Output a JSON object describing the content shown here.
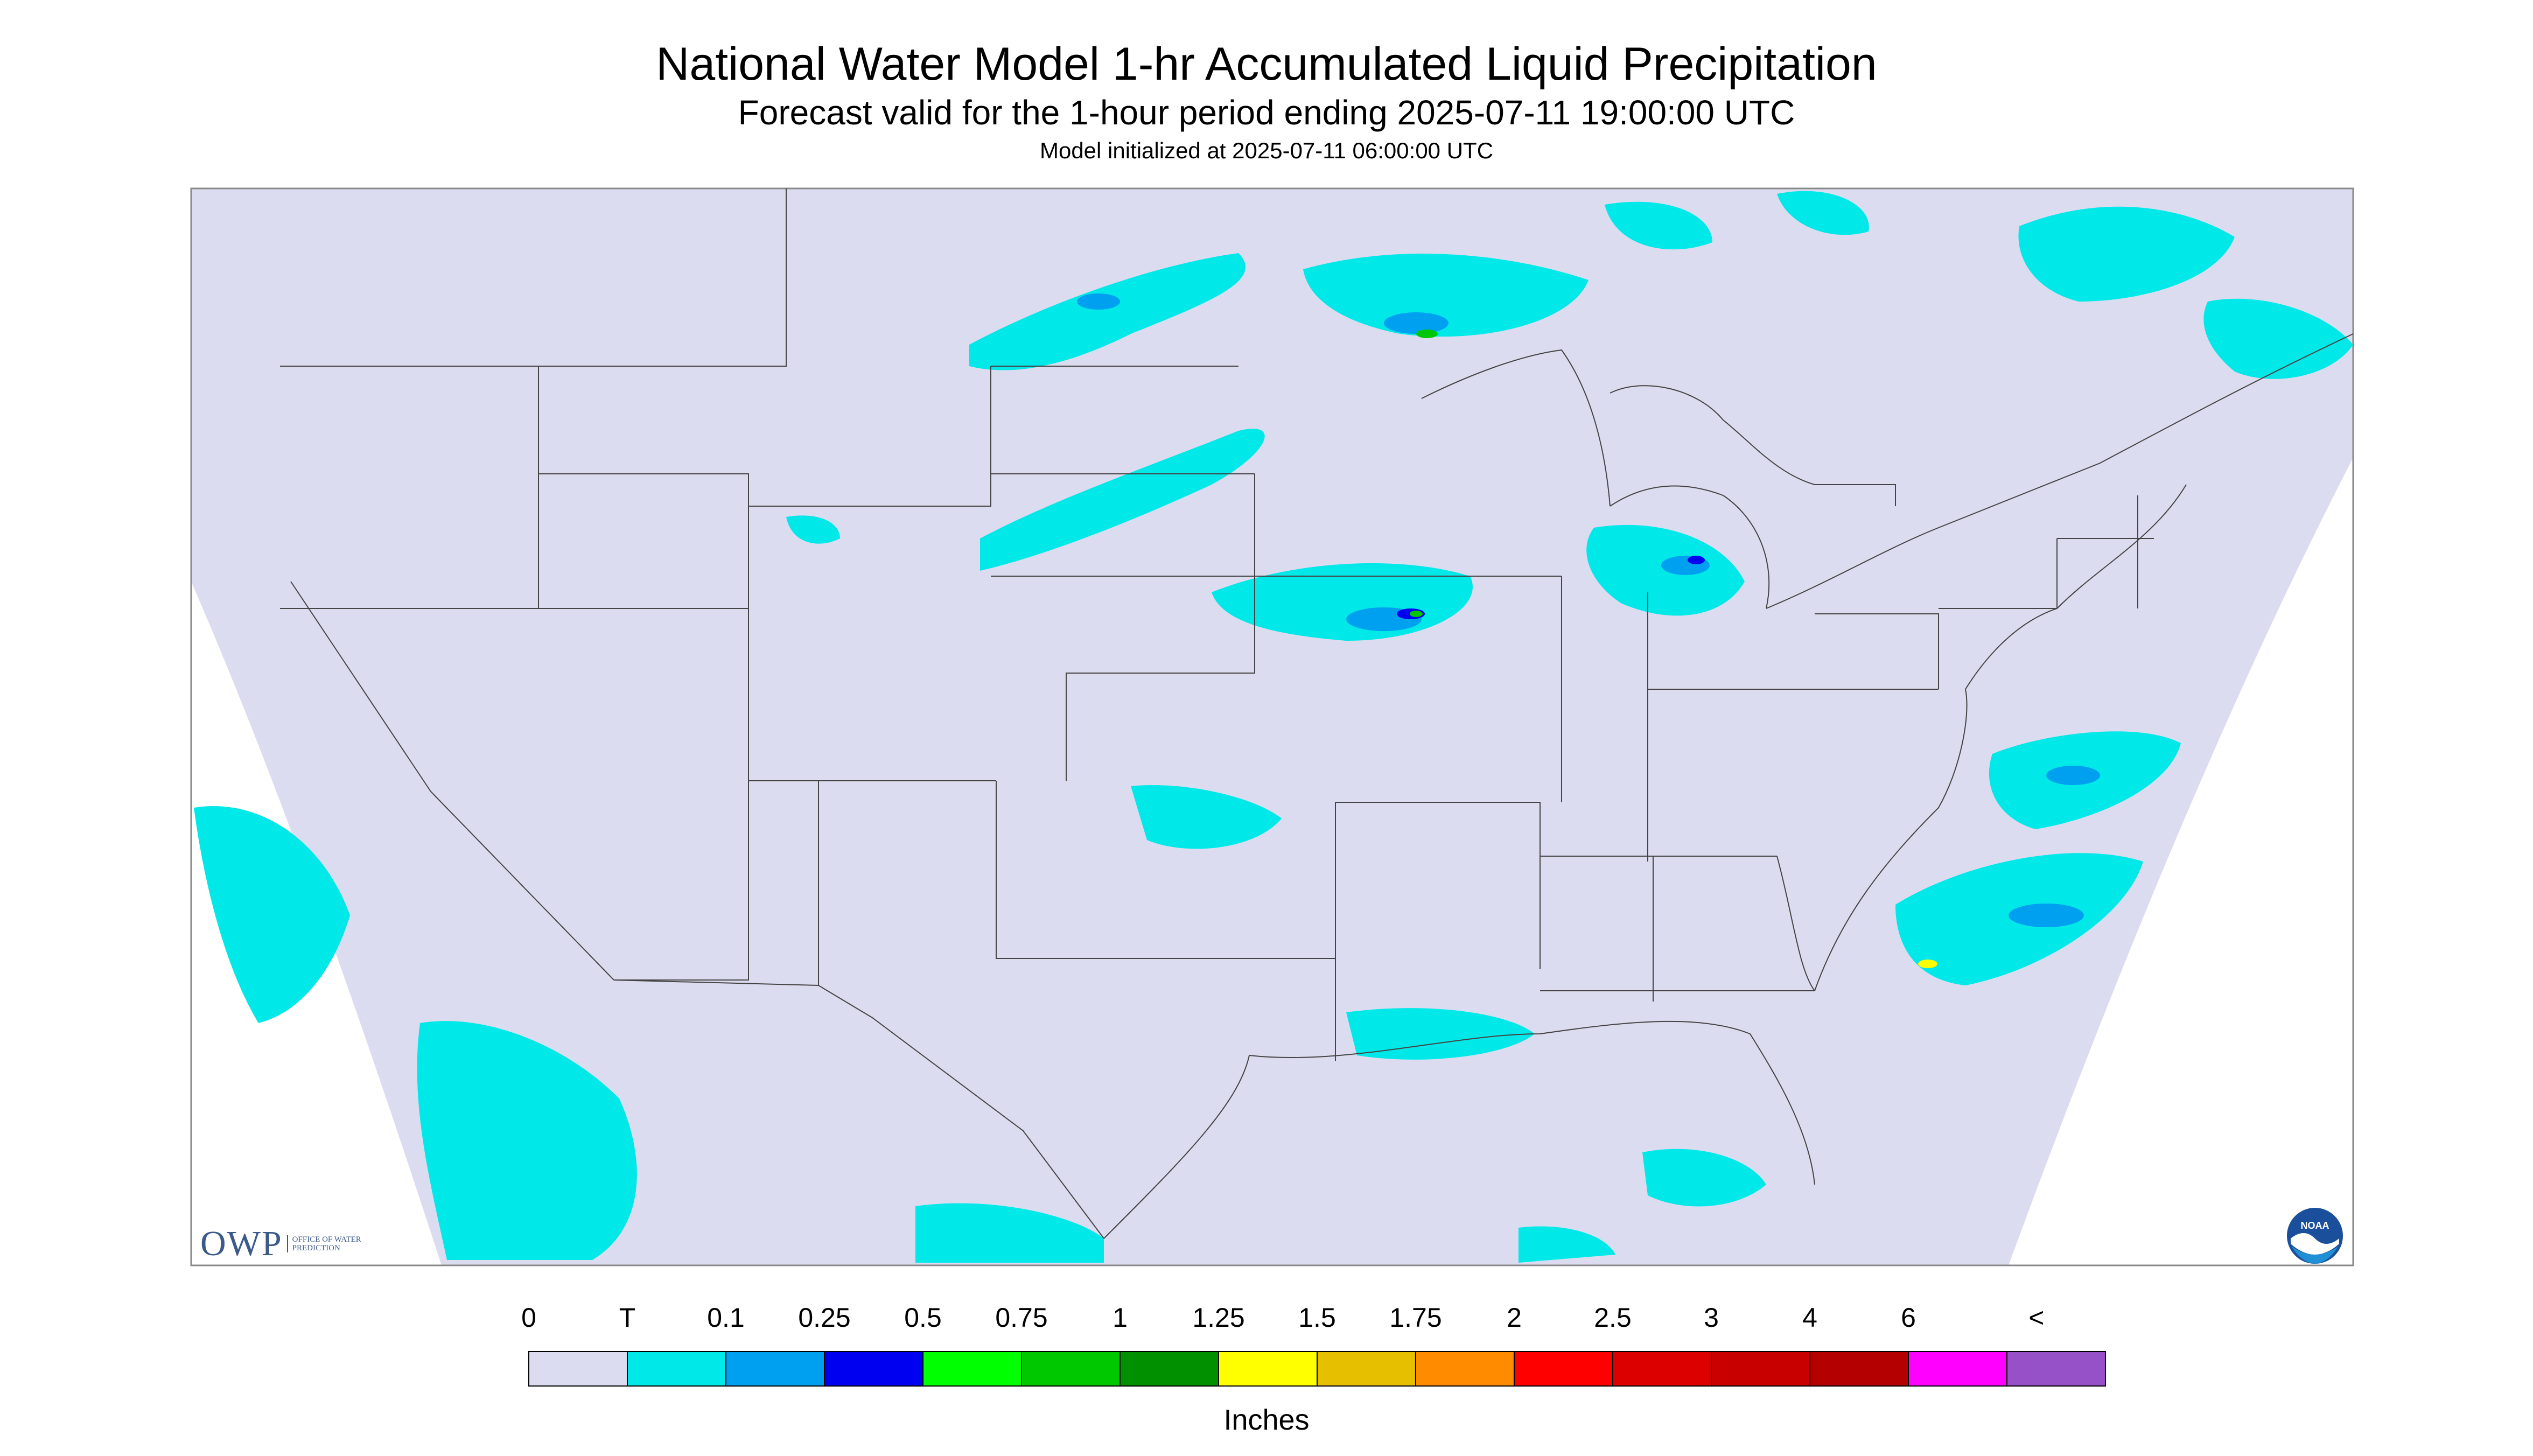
{
  "title": "National Water Model 1-hr Accumulated Liquid Precipitation",
  "subtitle": "Forecast valid for the 1-hour period ending 2025-07-11 19:00:00 UTC",
  "init_line": "Model initialized at 2025-07-11 06:00:00 UTC",
  "colorbar": {
    "unit_label": "Inches",
    "bins": [
      {
        "label": "0",
        "color": "#dcdcf0"
      },
      {
        "label": "T",
        "color": "#00e8e8"
      },
      {
        "label": "0.1",
        "color": "#00a0f0"
      },
      {
        "label": "0.25",
        "color": "#0000f0"
      },
      {
        "label": "0.5",
        "color": "#00ff00"
      },
      {
        "label": "0.75",
        "color": "#00c800"
      },
      {
        "label": "1",
        "color": "#009000"
      },
      {
        "label": "1.25",
        "color": "#ffff00"
      },
      {
        "label": "1.5",
        "color": "#e6c000"
      },
      {
        "label": "1.75",
        "color": "#ff8c00"
      },
      {
        "label": "2",
        "color": "#ff0000"
      },
      {
        "label": "2.5",
        "color": "#dc0000"
      },
      {
        "label": "3",
        "color": "#c80000"
      },
      {
        "label": "4",
        "color": "#b40000"
      },
      {
        "label": "6",
        "color": "#ff00ff"
      }
    ],
    "last_label": "<",
    "last_color": "#9650c8"
  },
  "logos": {
    "owp_text": "OWP",
    "owp_subtext": "OFFICE OF WATER PREDICTION",
    "noaa_text": "NOAA"
  },
  "colors": {
    "background_precip": "#dcdcf0",
    "trace": "#00e8e8",
    "light": "#00a0f0",
    "moderate": "#0000f0",
    "heavy_green": "#00c800",
    "heavy_yellow": "#ffff00",
    "border_lines": "#444444"
  }
}
